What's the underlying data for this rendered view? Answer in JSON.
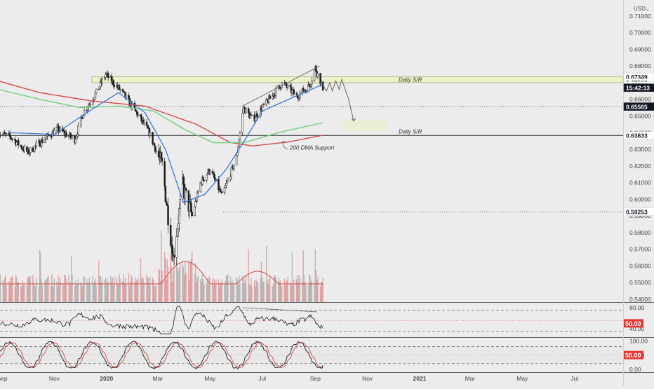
{
  "currency": "USD",
  "chart_data": {
    "type": "candlestick",
    "y_axis": {
      "ticks": [
        "0.71000",
        "0.70000",
        "0.69000",
        "0.68000",
        "0.67000",
        "0.66000",
        "0.65000",
        "0.64000",
        "0.63000",
        "0.62000",
        "0.61000",
        "0.60000",
        "0.59000",
        "0.58000",
        "0.57000",
        "0.56000",
        "0.55000",
        "0.54000"
      ],
      "range": [
        0.5395,
        0.716
      ]
    },
    "x_axis": {
      "labels": [
        {
          "text": "Sep",
          "date": "2019-09-01",
          "bold": false
        },
        {
          "text": "Nov",
          "date": "2019-11-01",
          "bold": false
        },
        {
          "text": "2020",
          "date": "2020-01-01",
          "bold": true
        },
        {
          "text": "Mar",
          "date": "2020-03-01",
          "bold": false
        },
        {
          "text": "May",
          "date": "2020-05-01",
          "bold": false
        },
        {
          "text": "Jul",
          "date": "2020-07-01",
          "bold": false
        },
        {
          "text": "Sep",
          "date": "2020-09-01",
          "bold": false
        },
        {
          "text": "Nov",
          "date": "2020-11-01",
          "bold": false
        },
        {
          "text": "2021",
          "date": "2021-01-01",
          "bold": true
        },
        {
          "text": "Mar",
          "date": "2021-03-01",
          "bold": false
        },
        {
          "text": "May",
          "date": "2021-05-01",
          "bold": false
        },
        {
          "text": "Jul",
          "date": "2021-07-01",
          "bold": false
        }
      ]
    },
    "price_labels": [
      {
        "text": "0.67349",
        "value": 0.67349,
        "bg": "#ffffff",
        "fg": "#131722"
      },
      {
        "text": "0.67003",
        "value": 0.67003,
        "bg": "#ffffff",
        "fg": "#131722"
      },
      {
        "text": "0.66832",
        "value": 0.66832,
        "bg": "#ffffff",
        "fg": "#131722"
      },
      {
        "text": "15:42:13",
        "value": 0.667,
        "bg": "#131722",
        "fg": "#ffffff"
      },
      {
        "text": "0.65565",
        "value": 0.65565,
        "bg": "#131722",
        "fg": "#ffffff"
      },
      {
        "text": "0.63833",
        "value": 0.63833,
        "bg": "#ffffff",
        "fg": "#131722"
      },
      {
        "text": "0.59253",
        "value": 0.59253,
        "bg": "#ffffff",
        "fg": "#131722"
      }
    ],
    "annotations": {
      "daily_sr_top": "Daily S/R",
      "daily_sr_bottom": "Daily S/R",
      "dma_support": "200 DMA Support"
    },
    "levels": {
      "sr_zone": [
        0.67003,
        0.67349
      ],
      "sr_bottom": 0.63833,
      "dotted_mid": 0.65565,
      "dotted_low": 0.59253
    },
    "price_path": [
      {
        "date": "2019-08-28",
        "value": 0.64
      },
      {
        "date": "2019-09-12",
        "value": 0.637
      },
      {
        "date": "2019-10-01",
        "value": 0.628
      },
      {
        "date": "2019-10-20",
        "value": 0.636
      },
      {
        "date": "2019-11-05",
        "value": 0.642
      },
      {
        "date": "2019-11-25",
        "value": 0.636
      },
      {
        "date": "2019-12-05",
        "value": 0.652
      },
      {
        "date": "2019-12-20",
        "value": 0.664
      },
      {
        "date": "2019-12-31",
        "value": 0.675
      },
      {
        "date": "2020-01-18",
        "value": 0.665
      },
      {
        "date": "2020-02-01",
        "value": 0.655
      },
      {
        "date": "2020-02-20",
        "value": 0.64
      },
      {
        "date": "2020-03-06",
        "value": 0.62
      },
      {
        "date": "2020-03-19",
        "value": 0.565
      },
      {
        "date": "2020-03-30",
        "value": 0.608
      },
      {
        "date": "2020-04-10",
        "value": 0.59
      },
      {
        "date": "2020-04-20",
        "value": 0.61
      },
      {
        "date": "2020-05-01",
        "value": 0.618
      },
      {
        "date": "2020-05-15",
        "value": 0.602
      },
      {
        "date": "2020-06-01",
        "value": 0.625
      },
      {
        "date": "2020-06-09",
        "value": 0.655
      },
      {
        "date": "2020-06-20",
        "value": 0.648
      },
      {
        "date": "2020-07-06",
        "value": 0.658
      },
      {
        "date": "2020-07-25",
        "value": 0.67
      },
      {
        "date": "2020-08-10",
        "value": 0.662
      },
      {
        "date": "2020-08-25",
        "value": 0.668
      },
      {
        "date": "2020-09-01",
        "value": 0.679
      },
      {
        "date": "2020-09-10",
        "value": 0.667
      }
    ],
    "blue_ma": [
      {
        "date": "2019-09-10",
        "value": 0.64
      },
      {
        "date": "2019-11-01",
        "value": 0.639
      },
      {
        "date": "2019-12-15",
        "value": 0.654
      },
      {
        "date": "2020-01-15",
        "value": 0.664
      },
      {
        "date": "2020-02-15",
        "value": 0.652
      },
      {
        "date": "2020-03-10",
        "value": 0.63
      },
      {
        "date": "2020-03-31",
        "value": 0.598
      },
      {
        "date": "2020-04-25",
        "value": 0.603
      },
      {
        "date": "2020-05-20",
        "value": 0.618
      },
      {
        "date": "2020-06-10",
        "value": 0.635
      },
      {
        "date": "2020-07-01",
        "value": 0.653
      },
      {
        "date": "2020-08-01",
        "value": 0.66
      },
      {
        "date": "2020-09-10",
        "value": 0.669
      }
    ],
    "red_ma": [
      {
        "date": "2019-08-28",
        "value": 0.671
      },
      {
        "date": "2019-10-15",
        "value": 0.664
      },
      {
        "date": "2019-12-15",
        "value": 0.659
      },
      {
        "date": "2020-02-15",
        "value": 0.656
      },
      {
        "date": "2020-04-15",
        "value": 0.645
      },
      {
        "date": "2020-05-25",
        "value": 0.634
      },
      {
        "date": "2020-06-20",
        "value": 0.632
      },
      {
        "date": "2020-08-01",
        "value": 0.6345
      },
      {
        "date": "2020-09-10",
        "value": 0.6385
      }
    ],
    "green_ma": [
      {
        "date": "2019-08-28",
        "value": 0.666
      },
      {
        "date": "2019-10-15",
        "value": 0.66
      },
      {
        "date": "2019-12-01",
        "value": 0.655
      },
      {
        "date": "2020-01-15",
        "value": 0.656
      },
      {
        "date": "2020-02-25",
        "value": 0.653
      },
      {
        "date": "2020-04-01",
        "value": 0.642
      },
      {
        "date": "2020-05-05",
        "value": 0.634
      },
      {
        "date": "2020-06-10",
        "value": 0.634
      },
      {
        "date": "2020-07-20",
        "value": 0.64
      },
      {
        "date": "2020-09-10",
        "value": 0.646
      }
    ],
    "projection": [
      {
        "date": "2020-09-10",
        "value": 0.6685
      },
      {
        "date": "2020-09-14",
        "value": 0.665
      },
      {
        "date": "2020-09-18",
        "value": 0.67
      },
      {
        "date": "2020-09-21",
        "value": 0.665
      },
      {
        "date": "2020-09-25",
        "value": 0.671
      },
      {
        "date": "2020-09-29",
        "value": 0.666
      },
      {
        "date": "2020-10-02",
        "value": 0.672
      },
      {
        "date": "2020-10-10",
        "value": 0.66
      },
      {
        "date": "2020-10-16",
        "value": 0.647
      }
    ],
    "trendline": [
      {
        "date": "2020-06-08",
        "value": 0.656
      },
      {
        "date": "2020-09-06",
        "value": 0.68
      }
    ],
    "rsi": {
      "ticks": [
        "80.00",
        "40.00"
      ],
      "current": "50.00",
      "range": [
        25,
        88
      ],
      "levels": [
        75,
        55,
        35
      ]
    },
    "stoch": {
      "ticks": [
        "100.00",
        "50.00",
        "0.00"
      ],
      "current": "50.00",
      "range": [
        -5,
        108
      ],
      "levels": [
        80,
        50,
        20
      ]
    }
  },
  "colors": {
    "background": "#ececec",
    "up_candle": "#6d6d6d",
    "down_candle": "#1b1b1b",
    "blue_ma": "#2f6fd6",
    "red_ma": "#d54a4a",
    "green_ma": "#6bd27a",
    "sr_zone": "#eef2c8",
    "sr_zone_border": "#a7ab6e",
    "volume": "#e08a8a",
    "volume_alt": "#a8a8a8"
  }
}
